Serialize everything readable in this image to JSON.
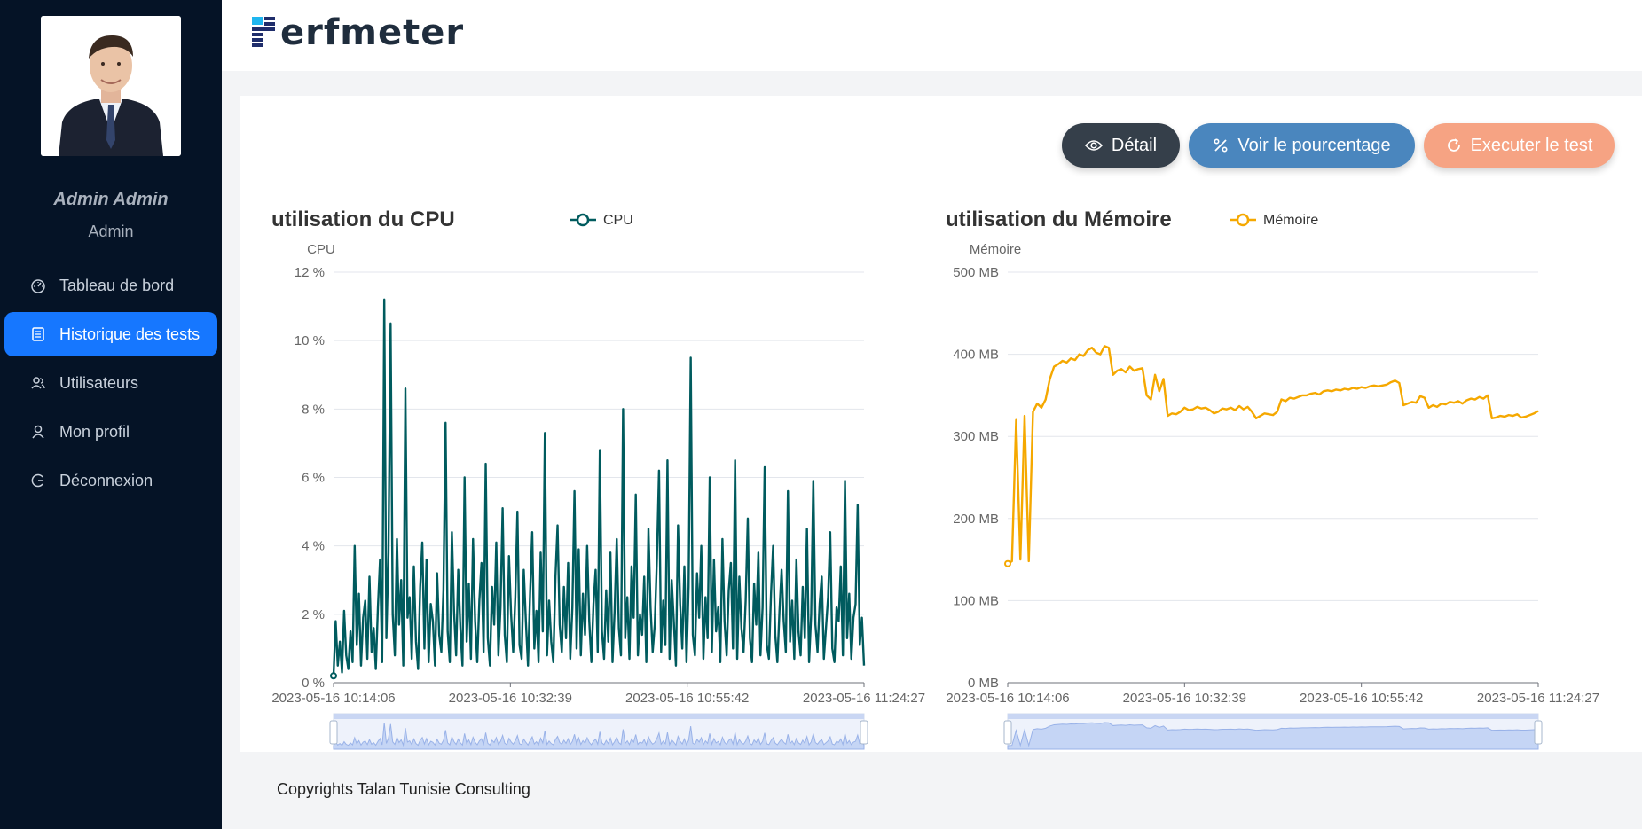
{
  "app": {
    "logo_text": "erfmeter"
  },
  "user": {
    "name": "Admin Admin",
    "role": "Admin"
  },
  "sidebar": {
    "items": [
      {
        "label": "Tableau de bord",
        "icon": "dashboard-icon",
        "active": false
      },
      {
        "label": "Historique des tests",
        "icon": "list-icon",
        "active": true
      },
      {
        "label": "Utilisateurs",
        "icon": "users-icon",
        "active": false
      },
      {
        "label": "Mon profil",
        "icon": "user-icon",
        "active": false
      },
      {
        "label": "Déconnexion",
        "icon": "logout-icon",
        "active": false
      }
    ]
  },
  "actions": {
    "detail_label": "Détail",
    "percent_label": "Voir le pourcentage",
    "run_label": "Executer le test"
  },
  "colors": {
    "cpu": "#005b5e",
    "memory": "#f5a800",
    "accent": "#1677ff"
  },
  "chart_data": [
    {
      "type": "line",
      "title": "utilisation du CPU",
      "ylabel": "CPU",
      "legend": [
        "CPU"
      ],
      "y_ticks": [
        "0 %",
        "2 %",
        "4 %",
        "6 %",
        "8 %",
        "10 %",
        "12 %"
      ],
      "x_ticks": [
        "2023-05-16 10:14:06",
        "2023-05-16 10:32:39",
        "2023-05-16 10:55:42",
        "2023-05-16 11:24:27"
      ],
      "ylim": [
        0,
        12
      ],
      "series": [
        {
          "name": "CPU",
          "values": [
            0.2,
            1.8,
            0.5,
            1.2,
            0.3,
            2.1,
            0.8,
            0.4,
            1.5,
            0.6,
            4.0,
            1.1,
            2.6,
            0.5,
            1.9,
            2.4,
            0.7,
            3.1,
            0.9,
            1.6,
            0.4,
            2.2,
            3.6,
            0.6,
            11.2,
            1.3,
            3.8,
            10.5,
            2.0,
            0.8,
            4.2,
            1.7,
            3.0,
            0.5,
            8.6,
            1.9,
            2.5,
            0.7,
            3.4,
            1.2,
            0.4,
            2.8,
            4.1,
            1.0,
            3.6,
            0.6,
            2.3,
            1.8,
            0.5,
            3.2,
            1.4,
            0.9,
            2.7,
            7.6,
            1.5,
            0.6,
            4.4,
            2.1,
            0.8,
            3.3,
            1.6,
            0.5,
            6.0,
            1.2,
            2.9,
            0.7,
            4.2,
            1.8,
            0.6,
            2.4,
            3.5,
            0.9,
            6.4,
            1.3,
            0.5,
            2.8,
            1.7,
            4.1,
            0.8,
            2.2,
            5.1,
            1.4,
            0.6,
            3.7,
            2.0,
            0.9,
            2.5,
            5.0,
            1.1,
            0.7,
            3.3,
            1.8,
            0.5,
            2.6,
            4.4,
            1.0,
            2.1,
            0.6,
            3.8,
            1.5,
            7.3,
            0.8,
            2.4,
            1.2,
            0.6,
            3.1,
            4.6,
            1.7,
            0.9,
            2.8,
            1.3,
            3.5,
            0.7,
            2.2,
            5.6,
            1.0,
            3.9,
            0.8,
            2.6,
            1.4,
            4.0,
            1.8,
            0.6,
            2.3,
            3.3,
            0.9,
            6.8,
            1.5,
            0.7,
            2.7,
            1.2,
            3.8,
            0.6,
            2.1,
            4.2,
            1.6,
            0.8,
            8.0,
            1.3,
            2.5,
            0.7,
            3.4,
            1.9,
            5.5,
            0.8,
            2.0,
            1.4,
            3.1,
            0.6,
            4.5,
            2.2,
            0.9,
            1.7,
            3.6,
            6.2,
            0.9,
            2.4,
            1.1,
            6.5,
            0.7,
            3.0,
            1.8,
            0.5,
            4.6,
            2.3,
            1.0,
            3.4,
            0.6,
            2.8,
            9.5,
            1.4,
            0.8,
            3.2,
            1.9,
            4.0,
            0.7,
            2.5,
            1.3,
            6.0,
            0.9,
            3.6,
            1.5,
            2.2,
            0.6,
            4.2,
            1.8,
            0.8,
            2.7,
            3.5,
            1.0,
            6.5,
            0.7,
            3.1,
            1.6,
            0.9,
            2.4,
            4.8,
            1.3,
            0.6,
            2.9,
            1.7,
            3.8,
            0.8,
            2.2,
            6.3,
            1.1,
            0.7,
            2.6,
            4.0,
            1.4,
            0.6,
            2.1,
            3.3,
            1.8,
            0.9,
            5.6,
            1.2,
            2.4,
            0.7,
            3.6,
            1.5,
            0.8,
            2.8,
            1.3,
            4.5,
            0.6,
            2.0,
            5.9,
            1.7,
            0.9,
            2.3,
            3.1,
            0.7,
            1.6,
            2.5,
            4.4,
            1.0,
            0.6,
            2.2,
            1.8,
            3.4,
            0.8,
            5.9,
            1.3,
            2.6,
            0.7,
            1.9,
            2.3,
            5.2,
            1.1,
            1.9,
            0.5
          ]
        }
      ]
    },
    {
      "type": "line",
      "title": "utilisation du Mémoire",
      "ylabel": "Mémoire",
      "legend": [
        "Mémoire"
      ],
      "y_ticks": [
        "0 MB",
        "100 MB",
        "200 MB",
        "300 MB",
        "400 MB",
        "500 MB"
      ],
      "x_ticks": [
        "2023-05-16 10:14:06",
        "2023-05-16 10:32:39",
        "2023-05-16 10:55:42",
        "2023-05-16 11:24:27"
      ],
      "ylim": [
        0,
        500
      ],
      "series": [
        {
          "name": "Mémoire",
          "values": [
            145,
            148,
            320,
            150,
            325,
            148,
            330,
            340,
            335,
            345,
            370,
            385,
            388,
            392,
            390,
            395,
            393,
            400,
            398,
            405,
            408,
            402,
            400,
            410,
            408,
            375,
            380,
            382,
            378,
            385,
            380,
            382,
            383,
            350,
            345,
            375,
            355,
            370,
            325,
            328,
            327,
            330,
            335,
            332,
            333,
            336,
            334,
            335,
            332,
            328,
            330,
            334,
            333,
            335,
            332,
            337,
            333,
            336,
            330,
            322,
            325,
            328,
            327,
            326,
            330,
            345,
            343,
            347,
            346,
            348,
            350,
            350,
            352,
            353,
            351,
            355,
            356,
            355,
            357,
            356,
            358,
            357,
            359,
            358,
            360,
            359,
            361,
            362,
            361,
            362,
            363,
            366,
            368,
            365,
            338,
            340,
            342,
            341,
            349,
            347,
            335,
            338,
            336,
            340,
            339,
            342,
            341,
            343,
            340,
            344,
            346,
            345,
            348,
            346,
            350,
            322,
            323,
            325,
            324,
            326,
            325,
            327,
            323,
            324,
            326,
            328,
            331
          ]
        }
      ]
    }
  ],
  "footer": {
    "text": "Copyrights Talan Tunisie Consulting"
  }
}
